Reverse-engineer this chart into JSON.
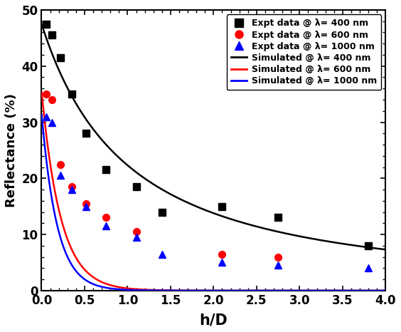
{
  "expt_400_x": [
    0.05,
    0.12,
    0.22,
    0.35,
    0.52,
    0.75,
    1.1,
    1.4,
    2.1,
    2.75,
    3.8
  ],
  "expt_400_y": [
    47.5,
    45.5,
    41.5,
    35.0,
    28.0,
    21.5,
    18.5,
    14.0,
    15.0,
    13.0,
    8.0
  ],
  "expt_600_x": [
    0.05,
    0.12,
    0.22,
    0.35,
    0.52,
    0.75,
    1.1,
    2.1,
    2.75
  ],
  "expt_600_y": [
    35.0,
    34.0,
    22.5,
    18.5,
    15.5,
    13.0,
    10.5,
    6.5,
    6.0
  ],
  "expt_1000_x": [
    0.05,
    0.12,
    0.22,
    0.35,
    0.52,
    0.75,
    1.1,
    1.4,
    2.1,
    2.75,
    3.8
  ],
  "expt_1000_y": [
    31.0,
    30.0,
    20.5,
    18.0,
    15.0,
    11.5,
    9.5,
    6.5,
    5.0,
    4.5,
    4.0
  ],
  "sim_400_a": 47.5,
  "sim_400_b": 0.75,
  "sim_400_c": 1.35,
  "sim_600_a": 35.5,
  "sim_600_b": 4.5,
  "sim_600_c": 1.0,
  "sim_1000_a": 31.5,
  "sim_1000_b": 5.5,
  "sim_1000_c": 1.0,
  "xlim": [
    0,
    4.0
  ],
  "ylim": [
    0,
    50
  ],
  "xlabel": "h/D",
  "ylabel": "Reflectance (%)",
  "xticks": [
    0.0,
    0.5,
    1.0,
    1.5,
    2.0,
    2.5,
    3.0,
    3.5,
    4.0
  ],
  "yticks": [
    0,
    10,
    20,
    30,
    40,
    50
  ],
  "color_400": "#000000",
  "color_600": "#ff0000",
  "color_1000": "#0000ff",
  "legend_labels": [
    "Expt data @ λ= 400 nm",
    "Expt data @ λ= 600 nm",
    "Expt data @ λ= 1000 nm",
    "Simulated @ λ= 400 nm",
    "Simulated @ λ= 600 nm",
    "Simulated @ λ= 1000 nm"
  ],
  "bg_color": "#ffffff",
  "figsize": [
    5.64,
    4.66
  ],
  "dpi": 100
}
